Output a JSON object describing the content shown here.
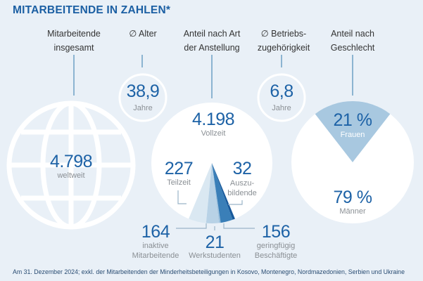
{
  "title": "MITARBEITENDE IN ZAHLEN*",
  "headers": {
    "total": [
      "Mitarbeitende",
      "insgesamt"
    ],
    "age": [
      "∅ Alter"
    ],
    "employment": [
      "Anteil nach Art",
      "der Anstellung"
    ],
    "tenure": [
      "∅ Betriebs-",
      "zugehörigkeit"
    ],
    "gender": [
      "Anteil nach",
      "Geschlecht"
    ]
  },
  "total": {
    "value": "4.798",
    "label": "weltweit",
    "icon": "globe-icon"
  },
  "age": {
    "value": "38,9",
    "label": "Jahre"
  },
  "tenure": {
    "value": "6,8",
    "label": "Jahre"
  },
  "employment": {
    "fulltime": {
      "value": "4.198",
      "label": "Vollzeit"
    },
    "parttime": {
      "value": "227",
      "label": "Teilzeit"
    },
    "apprentices": {
      "value": "32",
      "label": [
        "Auszu-",
        "bildende"
      ]
    },
    "inactive": {
      "value": "164",
      "label": [
        "inaktive",
        "Mitarbeitende"
      ]
    },
    "students": {
      "value": "21",
      "label": "Werkstudenten"
    },
    "marginal": {
      "value": "156",
      "label": [
        "geringfügig",
        "Beschäftigte"
      ]
    }
  },
  "gender": {
    "women": {
      "value": "21 %",
      "label": "Frauen"
    },
    "men": {
      "value": "79 %",
      "label": "Männer"
    }
  },
  "chart_data": [
    {
      "type": "pie",
      "categories": [
        "Vollzeit",
        "Teilzeit",
        "inaktive Mitarbeitende",
        "Werkstudenten",
        "geringfügig Beschäftigte",
        "Auszubildende"
      ],
      "values": [
        4198,
        227,
        164,
        21,
        156,
        32
      ],
      "colors": [
        "#ffffff",
        "#dae8f2",
        "#b8d2e6",
        "#9ec2de",
        "#3a7fb8",
        "#17599b"
      ]
    },
    {
      "type": "pie",
      "categories": [
        "Frauen",
        "Männer"
      ],
      "values": [
        21,
        79
      ],
      "colors": [
        "#a8c8e0",
        "#ffffff"
      ]
    }
  ],
  "footnote": "Am 31. Dezember 2024; exkl. der Mitarbeitenden der Minderheitsbeteiligungen in Kosovo, Montenegro, Nordmazedonien, Serbien und Ukraine"
}
